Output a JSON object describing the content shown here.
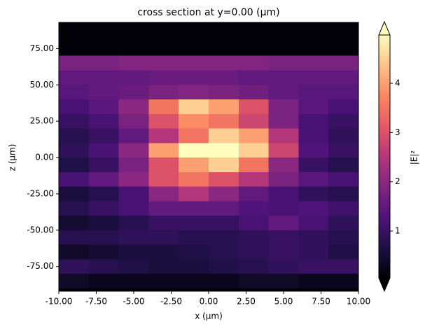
{
  "chart_data": {
    "type": "heatmap",
    "title": "cross section at y=0.00 (μm)",
    "x_label": "x (μm)",
    "y_label": "z (μm)",
    "colorbar_label": "|E|²",
    "colormap": "magma",
    "colorbar_extend": "both",
    "xlim": [
      -10,
      10
    ],
    "ylim": [
      -92,
      93
    ],
    "xticks": [
      {
        "value": -10,
        "label": "-10.00"
      },
      {
        "value": -7.5,
        "label": "-7.50"
      },
      {
        "value": -5,
        "label": "-5.00"
      },
      {
        "value": -2.5,
        "label": "-2.50"
      },
      {
        "value": 0,
        "label": "0.00"
      },
      {
        "value": 2.5,
        "label": "2.50"
      },
      {
        "value": 5,
        "label": "5.00"
      },
      {
        "value": 7.5,
        "label": "7.50"
      },
      {
        "value": 10,
        "label": "10.00"
      }
    ],
    "yticks": [
      {
        "value": -75,
        "label": "-75.00"
      },
      {
        "value": -50,
        "label": "-50.00"
      },
      {
        "value": -25,
        "label": "-25.00"
      },
      {
        "value": 0,
        "label": "0.00"
      },
      {
        "value": 25,
        "label": "25.00"
      },
      {
        "value": 50,
        "label": "50.00"
      },
      {
        "value": 75,
        "label": "75.00"
      }
    ],
    "clim": [
      0.05,
      4.98
    ],
    "cticks": [
      1,
      2,
      3,
      4
    ],
    "x": [
      -9,
      -7,
      -5,
      -3,
      -1,
      1,
      3,
      5,
      7,
      9
    ],
    "y": [
      85,
      75,
      65,
      55,
      45,
      35,
      25,
      15,
      5,
      -5,
      -15,
      -25,
      -35,
      -45,
      -55,
      -65,
      -75,
      -85
    ],
    "values": [
      [
        0.1,
        0.1,
        0.1,
        0.1,
        0.1,
        0.1,
        0.1,
        0.1,
        0.1,
        0.1
      ],
      [
        0.1,
        0.1,
        0.1,
        0.1,
        0.1,
        0.1,
        0.1,
        0.1,
        0.1,
        0.1
      ],
      [
        1.8,
        1.8,
        1.9,
        1.9,
        1.9,
        1.9,
        1.9,
        1.8,
        1.8,
        1.8
      ],
      [
        1.5,
        1.5,
        1.5,
        1.6,
        1.6,
        1.6,
        1.5,
        1.5,
        1.5,
        1.5
      ],
      [
        1.4,
        1.5,
        1.6,
        1.8,
        1.9,
        1.8,
        1.7,
        1.5,
        1.4,
        1.4
      ],
      [
        1.2,
        1.4,
        2,
        3.5,
        4.5,
        4,
        3,
        1.8,
        1.4,
        1.2
      ],
      [
        1,
        1.2,
        1.8,
        3,
        3.8,
        3.5,
        2.8,
        1.8,
        1.2,
        1
      ],
      [
        0.8,
        1,
        1.5,
        2.5,
        3.5,
        4.5,
        4,
        2.5,
        1.2,
        0.9
      ],
      [
        0.9,
        1.2,
        2,
        4,
        5,
        5,
        4.5,
        2.8,
        1.3,
        1
      ],
      [
        0.7,
        1,
        1.8,
        3,
        4,
        4.5,
        3.5,
        2,
        1,
        0.8
      ],
      [
        1.2,
        1.5,
        2,
        3,
        3.5,
        3,
        2.5,
        1.8,
        1.4,
        1.2
      ],
      [
        0.6,
        0.8,
        1.2,
        2,
        2.5,
        2,
        1.5,
        1.2,
        0.9,
        0.8
      ],
      [
        0.8,
        1,
        1.2,
        1.5,
        1.5,
        1.5,
        1.3,
        1.2,
        1.3,
        1.1
      ],
      [
        0.5,
        0.6,
        0.8,
        1,
        1,
        1,
        1.2,
        1.5,
        1.2,
        0.9
      ],
      [
        0.8,
        0.8,
        0.9,
        0.9,
        0.8,
        0.8,
        0.9,
        1,
        0.9,
        0.8
      ],
      [
        0.4,
        0.5,
        0.6,
        0.6,
        0.7,
        0.8,
        0.9,
        1,
        0.9,
        0.7
      ],
      [
        0.9,
        0.8,
        0.7,
        0.6,
        0.6,
        0.7,
        0.8,
        0.9,
        1,
        1
      ],
      [
        0.4,
        0.3,
        0.3,
        0.3,
        0.3,
        0.3,
        0.4,
        0.4,
        0.3,
        0.3
      ]
    ]
  }
}
